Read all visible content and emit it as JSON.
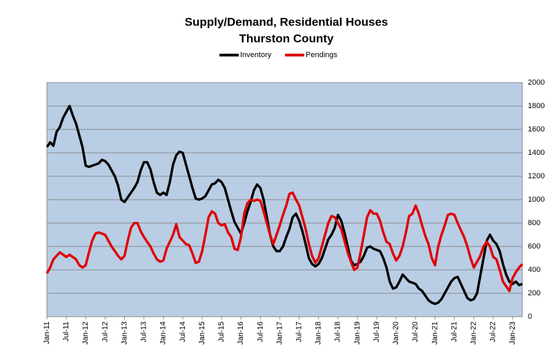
{
  "chart_data": {
    "type": "line",
    "title": "Supply/Demand, Residential Houses",
    "subtitle": "Thurston County",
    "categories": [
      "Jan-11",
      null,
      null,
      null,
      null,
      null,
      "Jul-11",
      null,
      null,
      null,
      null,
      null,
      "Jan-12",
      null,
      null,
      null,
      null,
      null,
      "Jul-12",
      null,
      null,
      null,
      null,
      null,
      "Jan-13",
      null,
      null,
      null,
      null,
      null,
      "Jul-13",
      null,
      null,
      null,
      null,
      null,
      "Jan-14",
      null,
      null,
      null,
      null,
      null,
      "Jul-14",
      null,
      null,
      null,
      null,
      null,
      "Jan-15",
      null,
      null,
      null,
      null,
      null,
      "Jul-15",
      null,
      null,
      null,
      null,
      null,
      "Jan-16",
      null,
      null,
      null,
      null,
      null,
      "Jul-16",
      null,
      null,
      null,
      null,
      null,
      "Jan-17",
      null,
      null,
      null,
      null,
      null,
      "Jul-17",
      null,
      null,
      null,
      null,
      null,
      "Jan-18",
      null,
      null,
      null,
      null,
      null,
      "Jul-18",
      null,
      null,
      null,
      null,
      null,
      "Jan-19",
      null,
      null,
      null,
      null,
      null,
      "Jul-19",
      null,
      null,
      null,
      null,
      null,
      "Jan-20",
      null,
      null,
      null,
      null,
      null,
      "Jul-20",
      null,
      null,
      null,
      null,
      null,
      "Jan-21",
      null,
      null,
      null,
      null,
      null,
      "Jul-21",
      null,
      null,
      null,
      null,
      null,
      "Jan-22",
      null,
      null,
      null,
      null,
      null,
      "Jul-22",
      null,
      null,
      null,
      null,
      null,
      "Jan-23",
      null,
      null,
      null
    ],
    "series": [
      {
        "name": "Inventory",
        "color": "#000000",
        "values": [
          1450,
          1490,
          1460,
          1580,
          1620,
          1700,
          1750,
          1800,
          1720,
          1650,
          1550,
          1450,
          1290,
          1280,
          1290,
          1300,
          1310,
          1340,
          1330,
          1300,
          1250,
          1200,
          1120,
          1000,
          980,
          1020,
          1060,
          1100,
          1150,
          1250,
          1320,
          1320,
          1260,
          1150,
          1060,
          1040,
          1060,
          1040,
          1150,
          1300,
          1380,
          1410,
          1400,
          1300,
          1200,
          1100,
          1010,
          1000,
          1010,
          1030,
          1080,
          1130,
          1140,
          1170,
          1150,
          1100,
          1000,
          900,
          810,
          760,
          710,
          800,
          900,
          980,
          1080,
          1130,
          1100,
          1000,
          850,
          700,
          600,
          560,
          560,
          600,
          680,
          750,
          850,
          880,
          820,
          730,
          620,
          500,
          450,
          430,
          450,
          500,
          580,
          660,
          700,
          760,
          870,
          820,
          720,
          600,
          480,
          440,
          450,
          470,
          520,
          590,
          600,
          580,
          570,
          560,
          500,
          420,
          300,
          240,
          250,
          300,
          360,
          330,
          300,
          290,
          280,
          240,
          220,
          180,
          140,
          120,
          110,
          120,
          150,
          200,
          250,
          300,
          330,
          340,
          280,
          220,
          160,
          140,
          150,
          200,
          350,
          500,
          650,
          700,
          650,
          620,
          560,
          450,
          360,
          300,
          280,
          300,
          270,
          280
        ]
      },
      {
        "name": "Pendings",
        "color": "#e00000",
        "values": [
          370,
          420,
          490,
          520,
          550,
          530,
          510,
          530,
          510,
          490,
          440,
          420,
          440,
          550,
          650,
          710,
          720,
          710,
          700,
          650,
          600,
          560,
          520,
          490,
          520,
          650,
          760,
          800,
          800,
          730,
          680,
          640,
          600,
          540,
          490,
          470,
          480,
          580,
          640,
          700,
          790,
          680,
          650,
          620,
          610,
          540,
          460,
          470,
          560,
          700,
          850,
          900,
          880,
          800,
          780,
          790,
          720,
          680,
          580,
          570,
          680,
          880,
          970,
          1000,
          990,
          1000,
          990,
          900,
          800,
          700,
          620,
          700,
          780,
          870,
          950,
          1050,
          1060,
          1000,
          950,
          850,
          750,
          620,
          520,
          460,
          500,
          600,
          700,
          800,
          860,
          850,
          800,
          750,
          650,
          550,
          470,
          400,
          420,
          550,
          700,
          850,
          910,
          880,
          880,
          820,
          720,
          640,
          620,
          540,
          480,
          520,
          600,
          720,
          860,
          880,
          950,
          880,
          780,
          690,
          620,
          500,
          440,
          600,
          700,
          780,
          870,
          880,
          870,
          800,
          740,
          680,
          600,
          500,
          420,
          470,
          520,
          600,
          640,
          600,
          510,
          490,
          400,
          300,
          260,
          220,
          330,
          380,
          420,
          450
        ]
      }
    ],
    "ylim": [
      0,
      2000
    ],
    "yticks": [
      0,
      200,
      400,
      600,
      800,
      1000,
      1200,
      1400,
      1600,
      1800,
      2000
    ],
    "grid": true,
    "legend": "top",
    "plot_background": "#b9cde5"
  }
}
